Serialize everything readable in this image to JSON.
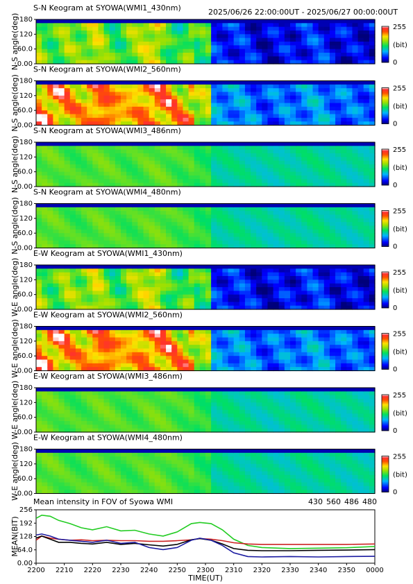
{
  "header": {
    "time_range": "2025/06/26 22:00:00UT - 2025/06/27 00:00:00UT"
  },
  "colorbar": {
    "max_label": "255",
    "unit_label": "(bit)",
    "min_label": "0"
  },
  "chart_data": [
    {
      "type": "heatmap",
      "title": "S-N Keogram at SYOWA(WMI1_430nm)",
      "ylabel": "N-S angle(deg)",
      "yticks": [
        "180",
        "120",
        "60.0",
        "0.00"
      ],
      "ylim": [
        0,
        180
      ],
      "colorbar": {
        "min": 0,
        "max": 255,
        "label": "(bit)"
      },
      "profile": "wmi1",
      "base": 0.45
    },
    {
      "type": "heatmap",
      "title": "S-N Keogram at SYOWA(WMI2_560nm)",
      "ylabel": "N-S angle(deg)",
      "yticks": [
        "180",
        "120",
        "60.0",
        "0.00"
      ],
      "ylim": [
        0,
        180
      ],
      "colorbar": {
        "min": 0,
        "max": 255,
        "label": "(bit)"
      },
      "profile": "wmi2",
      "base": 0.62
    },
    {
      "type": "heatmap",
      "title": "S-N Keogram at SYOWA(WMI3_486nm)",
      "ylabel": "N-S angle(deg)",
      "yticks": [
        "180",
        "120",
        "60.0",
        "0.00"
      ],
      "ylim": [
        0,
        180
      ],
      "colorbar": {
        "min": 0,
        "max": 255,
        "label": "(bit)"
      },
      "profile": "wmi3",
      "base": 0.5
    },
    {
      "type": "heatmap",
      "title": "S-N Keogram at SYOWA(WMI4_480nm)",
      "ylabel": "N-S angle(deg)",
      "yticks": [
        "180",
        "120",
        "60.0",
        "0.00"
      ],
      "ylim": [
        0,
        180
      ],
      "colorbar": {
        "min": 0,
        "max": 255,
        "label": "(bit)"
      },
      "profile": "wmi4",
      "base": 0.48
    },
    {
      "type": "heatmap",
      "title": "E-W Keogram at SYOWA(WMI1_430nm)",
      "ylabel": "W-E angle(deg)",
      "yticks": [
        "180",
        "120",
        "60.0",
        "0.00"
      ],
      "ylim": [
        0,
        180
      ],
      "colorbar": {
        "min": 0,
        "max": 255,
        "label": "(bit)"
      },
      "profile": "wmi1",
      "base": 0.45
    },
    {
      "type": "heatmap",
      "title": "E-W Keogram at SYOWA(WMI2_560nm)",
      "ylabel": "W-E angle(deg)",
      "yticks": [
        "180",
        "120",
        "60.0",
        "0.00"
      ],
      "ylim": [
        0,
        180
      ],
      "colorbar": {
        "min": 0,
        "max": 255,
        "label": "(bit)"
      },
      "profile": "wmi2",
      "base": 0.62
    },
    {
      "type": "heatmap",
      "title": "E-W Keogram at SYOWA(WMI3_486nm)",
      "ylabel": "W-E angle(deg)",
      "yticks": [
        "180",
        "120",
        "60.0",
        "0.00"
      ],
      "ylim": [
        0,
        180
      ],
      "colorbar": {
        "min": 0,
        "max": 255,
        "label": "(bit)"
      },
      "profile": "wmi3",
      "base": 0.5
    },
    {
      "type": "heatmap",
      "title": "E-W Keogram at SYOWA(WMI4_480nm)",
      "ylabel": "W-E angle(deg)",
      "yticks": [
        "180",
        "120",
        "60.0",
        "0.00"
      ],
      "ylim": [
        0,
        180
      ],
      "colorbar": {
        "min": 0,
        "max": 255,
        "label": "(bit)"
      },
      "profile": "wmi4",
      "base": 0.48
    },
    {
      "type": "line",
      "title": "Mean intensity in FOV of Syowa WMI",
      "ylabel": "MEAN(BIT)",
      "xlabel": "TIME(UT)",
      "yticks": [
        "256",
        "192",
        "128",
        "64.0",
        "0.00"
      ],
      "ylim": [
        0,
        256
      ],
      "xlim": [
        0,
        120
      ],
      "xticks": [
        "2200",
        "2210",
        "2220",
        "2230",
        "2240",
        "2250",
        "2300",
        "2310",
        "2320",
        "2330",
        "2340",
        "2350",
        "0000"
      ],
      "series": [
        {
          "name": "430",
          "color": "#1a1aa0",
          "x": [
            0,
            2,
            5,
            8,
            12,
            16,
            20,
            25,
            30,
            35,
            40,
            45,
            50,
            55,
            58,
            62,
            66,
            70,
            75,
            80,
            90,
            100,
            110,
            120
          ],
          "y": [
            135,
            140,
            130,
            115,
            110,
            105,
            100,
            110,
            95,
            100,
            75,
            65,
            75,
            110,
            120,
            110,
            85,
            50,
            32,
            30,
            32,
            30,
            32,
            33
          ]
        },
        {
          "name": "560",
          "color": "#22cc22",
          "x": [
            0,
            2,
            5,
            8,
            12,
            16,
            20,
            25,
            30,
            35,
            40,
            45,
            50,
            55,
            58,
            62,
            66,
            70,
            75,
            80,
            90,
            100,
            110,
            120
          ],
          "y": [
            215,
            230,
            225,
            205,
            190,
            170,
            160,
            175,
            155,
            158,
            140,
            130,
            150,
            190,
            195,
            190,
            160,
            115,
            85,
            75,
            70,
            72,
            74,
            80
          ]
        },
        {
          "name": "486",
          "color": "#cc2222",
          "x": [
            0,
            2,
            5,
            8,
            12,
            16,
            20,
            25,
            30,
            35,
            40,
            45,
            50,
            55,
            58,
            62,
            66,
            70,
            75,
            80,
            90,
            100,
            110,
            120
          ],
          "y": [
            110,
            130,
            120,
            115,
            110,
            112,
            108,
            110,
            108,
            108,
            105,
            105,
            108,
            112,
            118,
            115,
            108,
            98,
            92,
            90,
            90,
            90,
            90,
            92
          ]
        },
        {
          "name": "480",
          "color": "#000000",
          "x": [
            0,
            2,
            5,
            8,
            12,
            16,
            20,
            25,
            30,
            35,
            40,
            45,
            50,
            55,
            58,
            62,
            66,
            70,
            75,
            80,
            90,
            100,
            110,
            120
          ],
          "y": [
            120,
            130,
            115,
            100,
            100,
            95,
            92,
            100,
            90,
            95,
            88,
            82,
            90,
            112,
            118,
            110,
            92,
            70,
            62,
            60,
            60,
            62,
            63,
            65
          ]
        }
      ]
    }
  ]
}
